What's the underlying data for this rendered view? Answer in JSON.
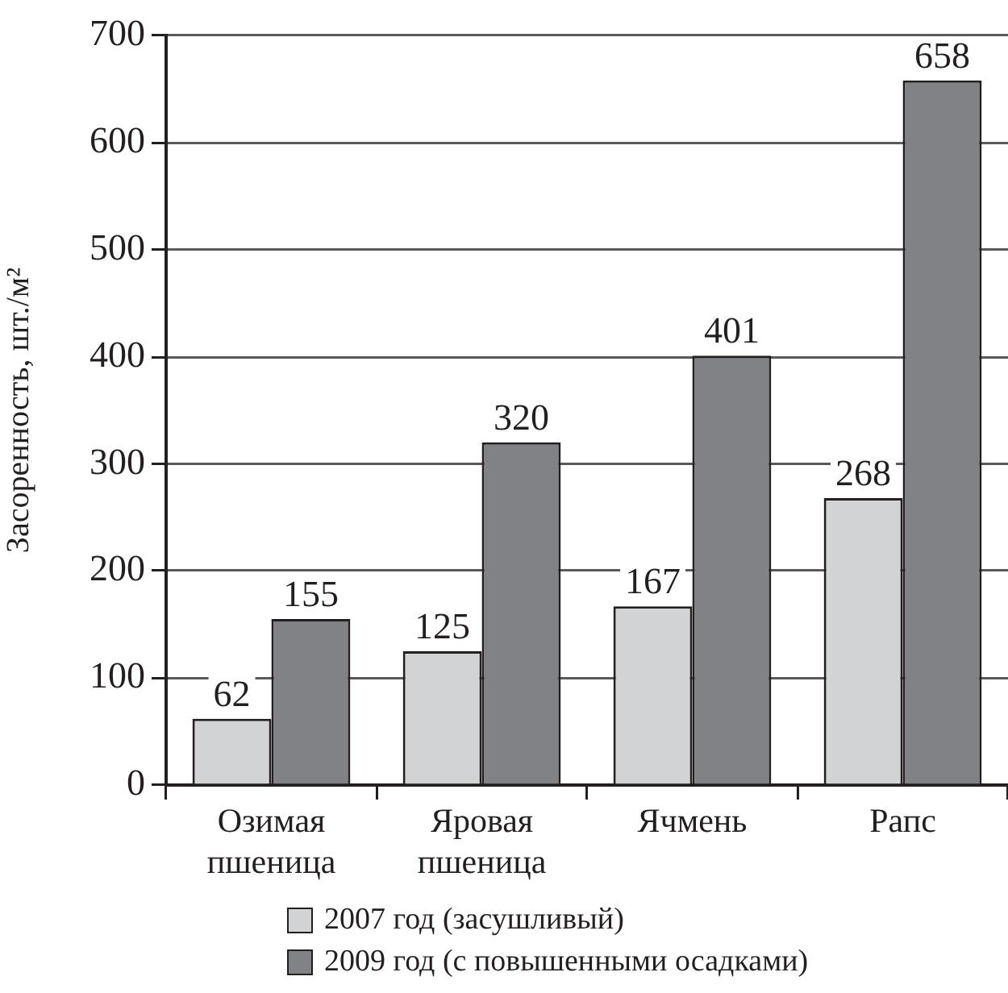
{
  "chart_data": {
    "type": "bar",
    "ylabel": "Засоренность, шт./м²",
    "categories": [
      "Озимая пшеница",
      "Яровая пшеница",
      "Ячмень",
      "Рапс"
    ],
    "series": [
      {
        "name": "2007 год (засушливый)",
        "color": "#d1d3d4",
        "values": [
          62,
          125,
          167,
          268
        ]
      },
      {
        "name": "2009 год (с повышенными осадками)",
        "color": "#808285",
        "values": [
          155,
          320,
          401,
          658
        ]
      }
    ],
    "ylim": [
      0,
      700
    ],
    "yticks": [
      0,
      100,
      200,
      300,
      400,
      500,
      600,
      700
    ],
    "grid": "y",
    "legend": "bottom",
    "data_labels": true
  }
}
